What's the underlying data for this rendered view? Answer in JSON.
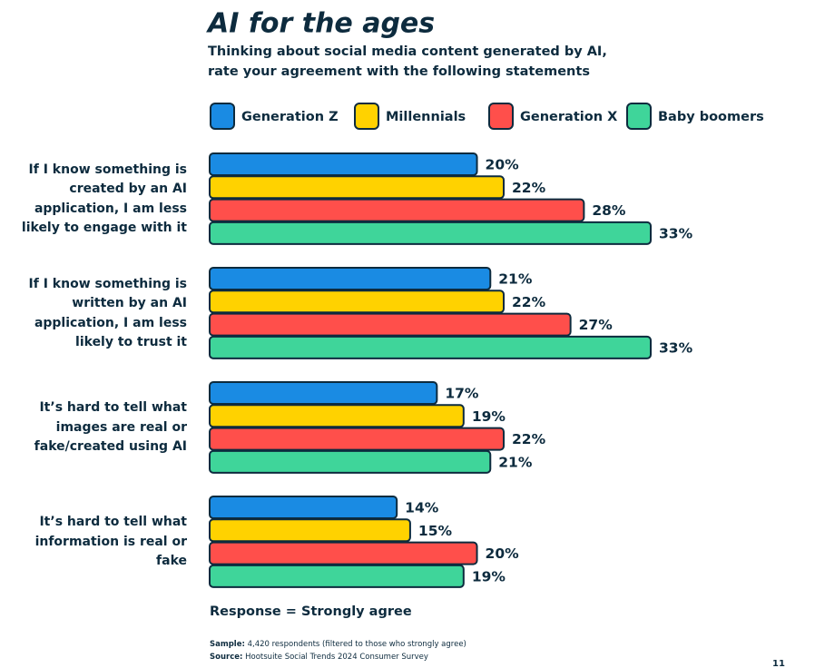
{
  "chart_data": {
    "type": "bar",
    "orientation": "horizontal",
    "title": "AI for the ages",
    "subtitle": [
      "Thinking about social media content generated by AI,",
      "rate your agreement with the following statements"
    ],
    "categories": [
      "If I know something is created by an AI application, I am less likely to engage with it",
      "If I know something is written by an AI application, I am less likely to trust it",
      "It’s hard to tell what images are real or fake/created using AI",
      "It’s hard to tell what information is real or fake"
    ],
    "series": [
      {
        "name": "Generation Z",
        "color": "#1a8be3",
        "values": [
          20,
          21,
          17,
          14
        ],
        "value_labels": [
          "20%",
          "21%",
          "17%",
          "14%"
        ]
      },
      {
        "name": "Millennials",
        "color": "#ffd200",
        "values": [
          22,
          22,
          19,
          15
        ],
        "value_labels": [
          "22%",
          "22%",
          "19%",
          "15%"
        ]
      },
      {
        "name": "Generation X",
        "color": "#ff4f4b",
        "values": [
          28,
          27,
          22,
          20
        ],
        "value_labels": [
          "28%",
          "27%",
          "22%",
          "20%"
        ]
      },
      {
        "name": "Baby boomers",
        "color": "#3fd59a",
        "values": [
          33,
          33,
          21,
          19
        ],
        "value_labels": [
          "33%",
          "33%",
          "21%",
          "19%"
        ]
      }
    ],
    "note": "Response = Strongly agree",
    "sample": {
      "label": "Sample:",
      "text": "4,420 respondents (filtered to those who strongly agree)"
    },
    "source": {
      "label": "Source:",
      "text": "Hootsuite Social Trends 2024 Consumer Survey"
    },
    "page_number": "11"
  }
}
